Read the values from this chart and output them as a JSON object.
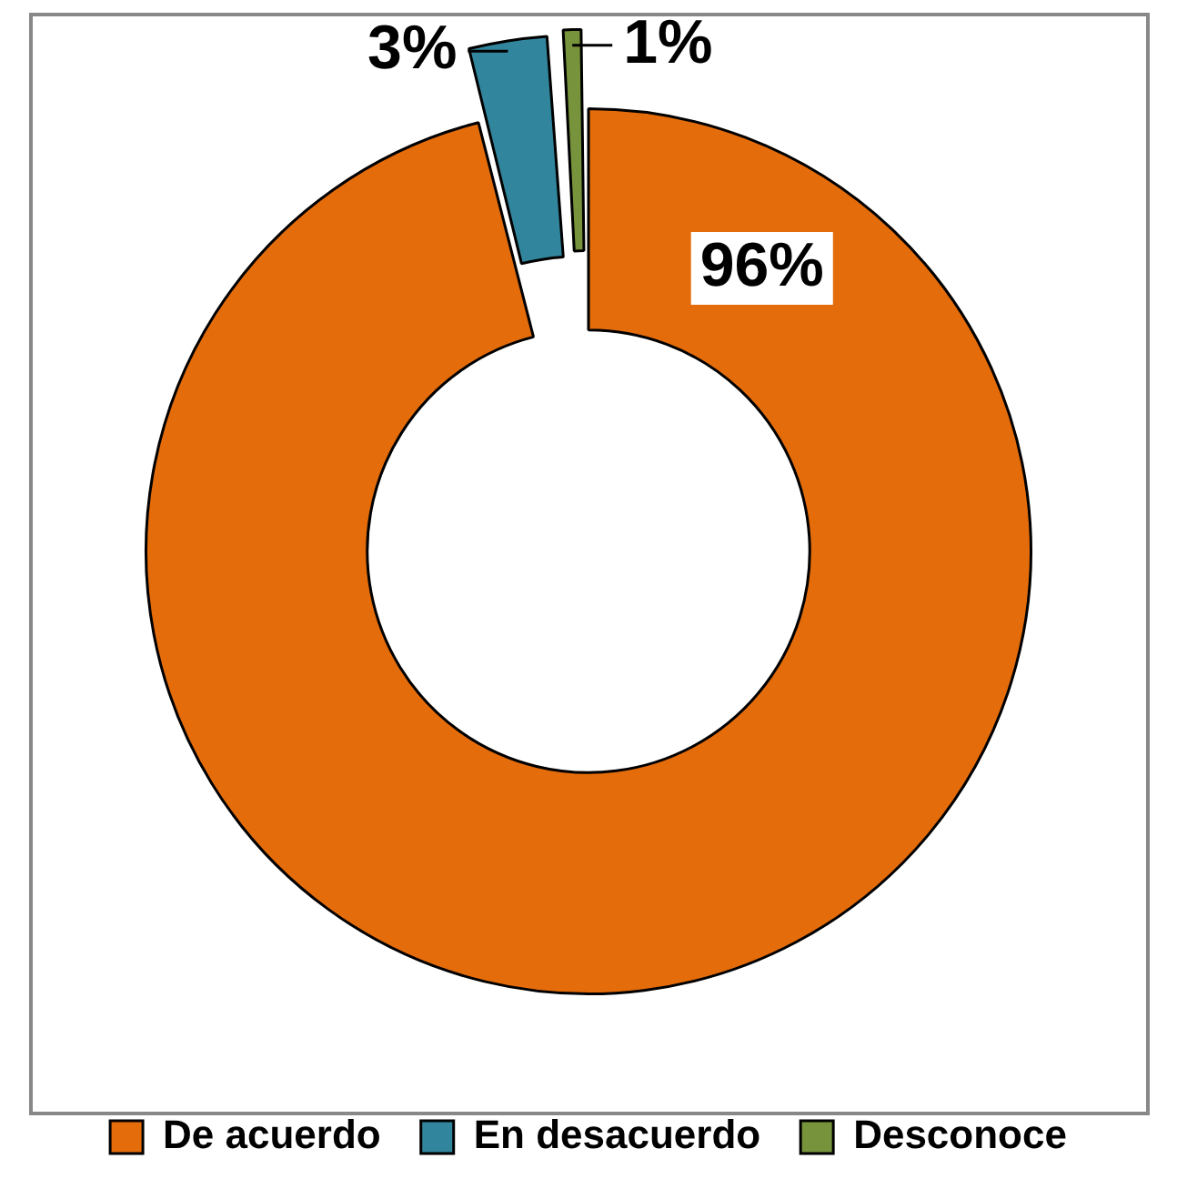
{
  "chart_data": {
    "type": "donut",
    "categories": [
      "De acuerdo",
      "En desacuerdo",
      "Desconoce"
    ],
    "values": [
      96,
      3,
      1
    ],
    "colors": [
      "#e46c0a",
      "#31859c",
      "#77933c"
    ],
    "value_labels": [
      "96%",
      "3%",
      "1%"
    ],
    "legend": "bottom"
  }
}
